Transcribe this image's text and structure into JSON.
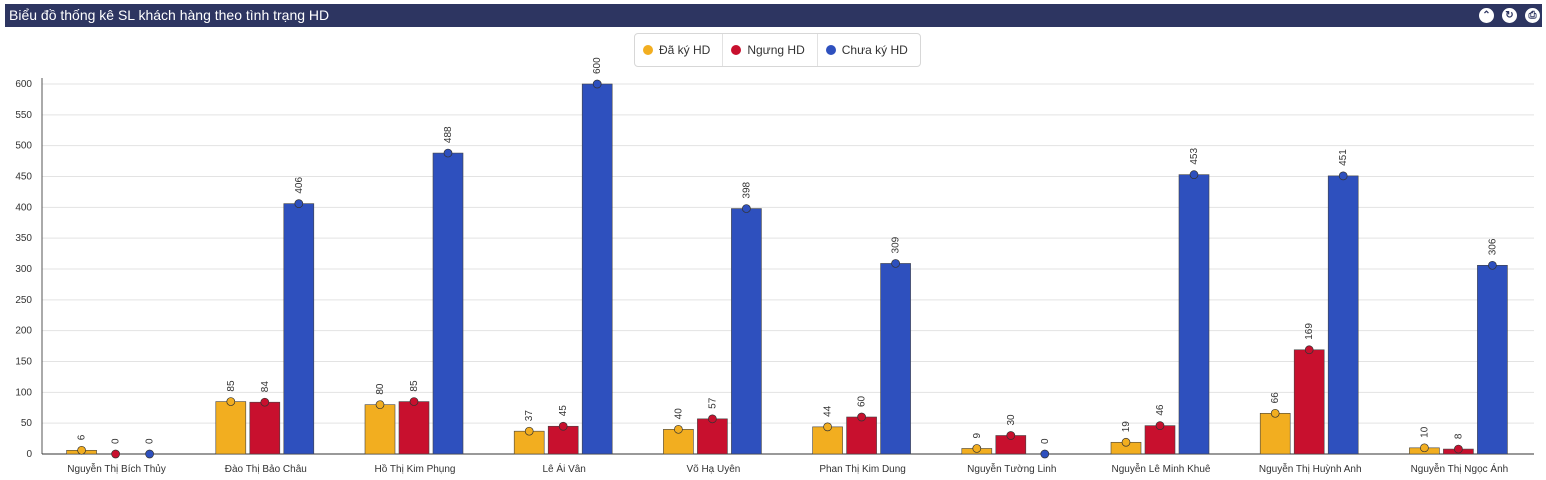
{
  "panel": {
    "title": "Biểu đồ thống kê SL khách hàng theo tình trạng HD",
    "buttons": [
      {
        "name": "collapse-icon",
        "glyph": "⌃"
      },
      {
        "name": "refresh-icon",
        "glyph": "↻"
      },
      {
        "name": "print-icon",
        "glyph": "⎙"
      }
    ]
  },
  "colors": {
    "Đã ký HD": "#f2ae20",
    "Ngưng HD": "#c8102e",
    "Chưa ký HD": "#2e50be"
  },
  "chart_data": {
    "type": "bar",
    "title": "",
    "xlabel": "",
    "ylabel": "",
    "ylim": [
      0,
      600
    ],
    "yticks": [
      0,
      50,
      100,
      150,
      200,
      250,
      300,
      350,
      400,
      450,
      500,
      550,
      600
    ],
    "grid": true,
    "legend_position": "top-center",
    "categories": [
      "Nguyễn Thị Bích Thủy",
      "Đào Thị Bảo Châu",
      "Hồ Thị Kim Phụng",
      "Lê Ái Vân",
      "Võ Hạ Uyên",
      "Phan Thị Kim Dung",
      "Nguyễn Tường Linh",
      "Nguyễn Lê Minh Khuê",
      "Nguyễn Thị Huỳnh Anh",
      "Nguyễn Thị Ngọc Ánh"
    ],
    "series": [
      {
        "name": "Đã ký HD",
        "values": [
          6,
          85,
          80,
          37,
          40,
          44,
          9,
          19,
          66,
          10
        ]
      },
      {
        "name": "Ngưng HD",
        "values": [
          0,
          84,
          85,
          45,
          57,
          60,
          30,
          46,
          169,
          8
        ]
      },
      {
        "name": "Chưa ký HD",
        "values": [
          0,
          406,
          488,
          600,
          398,
          309,
          0,
          453,
          451,
          306
        ]
      }
    ]
  }
}
